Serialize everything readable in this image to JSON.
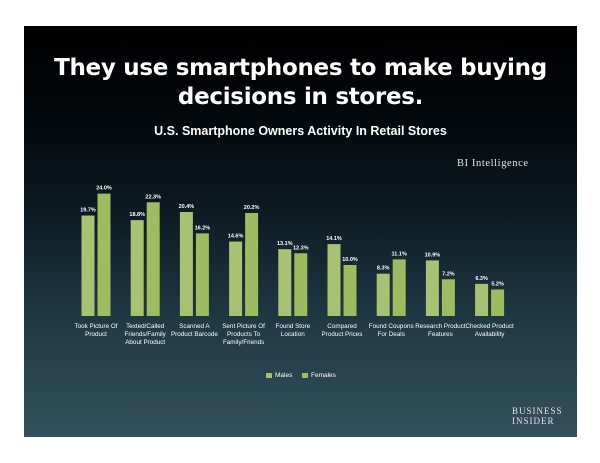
{
  "headline": {
    "line1": "They use smartphones to make buying",
    "line2": "decisions in stores."
  },
  "watermark": "BI Intelligence",
  "logo": {
    "line1": "BUSINESS",
    "line2": "INSIDER"
  },
  "colors": {
    "males": "#a8c273",
    "females": "#9dbc5f",
    "background_top": "#000000",
    "background_bottom": "#34505a"
  },
  "chart_data": {
    "type": "bar",
    "title": "U.S. Smartphone Owners Activity In Retail Stores",
    "categories": [
      [
        "Took Picture Of",
        "Product"
      ],
      [
        "Texted/Called",
        "Friends/Family",
        "About Product"
      ],
      [
        "Scanned A",
        "Product Barcode"
      ],
      [
        "Sent Picture Of",
        "Products To",
        "Family/Friends"
      ],
      [
        "Found Store",
        "Location"
      ],
      [
        "Compared",
        "Product Prices"
      ],
      [
        "Found Coupons",
        "For Deals"
      ],
      [
        "Research Product",
        "Features"
      ],
      [
        "Checked Product",
        "Availability"
      ]
    ],
    "series": [
      {
        "name": "Males",
        "values": [
          19.7,
          18.8,
          20.4,
          14.6,
          13.1,
          14.1,
          8.3,
          10.9,
          6.3
        ],
        "labels": [
          "19.7%",
          "18.8%",
          "20.4%",
          "14.6%",
          "13.1%",
          "14.1%",
          "8.3%",
          "10.9%",
          "6.3%"
        ]
      },
      {
        "name": "Females",
        "values": [
          24.0,
          22.3,
          16.2,
          20.2,
          12.3,
          10.0,
          11.1,
          7.2,
          5.2
        ],
        "labels": [
          "24.0%",
          "22.3%",
          "16.2%",
          "20.2%",
          "12.3%",
          "10.0%",
          "11.1%",
          "7.2%",
          "5.2%"
        ]
      }
    ],
    "ylim": [
      0,
      24
    ],
    "grid": false,
    "legend": "bottom-center"
  }
}
